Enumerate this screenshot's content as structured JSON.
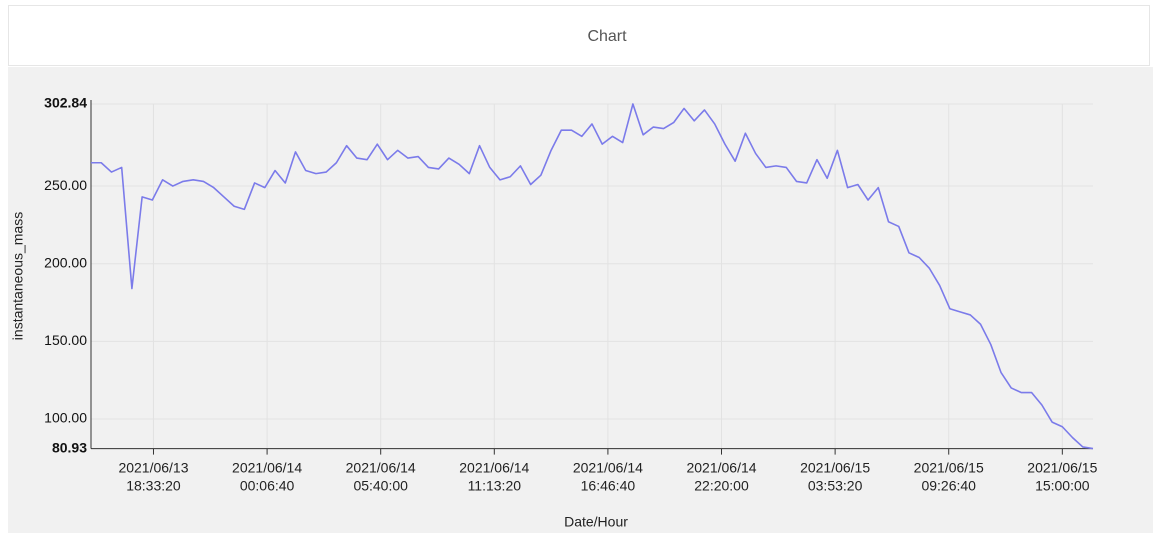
{
  "chart_data": {
    "type": "line",
    "title": "Chart",
    "xlabel": "Date/Hour",
    "ylabel": "instantaneous_mass",
    "color": "#7b7bea",
    "grid": true,
    "xlim": [
      "2021/06/13 15:30",
      "2021/06/15 16:30"
    ],
    "xticks": [
      {
        "value": "2021/06/13 18:33:20",
        "label": [
          "2021/06/13",
          "18:33:20"
        ]
      },
      {
        "value": "2021/06/14 00:06:40",
        "label": [
          "2021/06/14",
          "00:06:40"
        ]
      },
      {
        "value": "2021/06/14 05:40:00",
        "label": [
          "2021/06/14",
          "05:40:00"
        ]
      },
      {
        "value": "2021/06/14 11:13:20",
        "label": [
          "2021/06/14",
          "11:13:20"
        ]
      },
      {
        "value": "2021/06/14 16:46:40",
        "label": [
          "2021/06/14",
          "16:46:40"
        ]
      },
      {
        "value": "2021/06/14 22:20:00",
        "label": [
          "2021/06/14",
          "22:20:00"
        ]
      },
      {
        "value": "2021/06/15 03:53:20",
        "label": [
          "2021/06/15",
          "03:53:20"
        ]
      },
      {
        "value": "2021/06/15 09:26:40",
        "label": [
          "2021/06/15",
          "09:26:40"
        ]
      },
      {
        "value": "2021/06/15 15:00:00",
        "label": [
          "2021/06/15",
          "15:00:00"
        ]
      }
    ],
    "ylim": [
      80.93,
      302.84
    ],
    "yticks": [
      80.93,
      {
        "value": 100,
        "label": "100.00"
      },
      {
        "value": 150,
        "label": "150.00"
      },
      {
        "value": 200,
        "label": "200.00"
      },
      {
        "value": 250,
        "label": "250.00"
      },
      302.84
    ],
    "x": [
      "2021/06/13 15:30",
      "2021/06/13 16:00",
      "2021/06/13 16:30",
      "2021/06/13 17:00",
      "2021/06/13 17:30",
      "2021/06/13 18:00",
      "2021/06/13 18:30",
      "2021/06/13 19:00",
      "2021/06/13 19:30",
      "2021/06/13 20:00",
      "2021/06/13 20:30",
      "2021/06/13 21:00",
      "2021/06/13 21:30",
      "2021/06/13 22:00",
      "2021/06/13 22:30",
      "2021/06/13 23:00",
      "2021/06/13 23:30",
      "2021/06/14 00:00",
      "2021/06/14 00:30",
      "2021/06/14 01:00",
      "2021/06/14 01:30",
      "2021/06/14 02:00",
      "2021/06/14 02:30",
      "2021/06/14 03:00",
      "2021/06/14 03:30",
      "2021/06/14 04:00",
      "2021/06/14 04:30",
      "2021/06/14 05:00",
      "2021/06/14 05:30",
      "2021/06/14 06:00",
      "2021/06/14 06:30",
      "2021/06/14 07:00",
      "2021/06/14 07:30",
      "2021/06/14 08:00",
      "2021/06/14 08:30",
      "2021/06/14 09:00",
      "2021/06/14 09:30",
      "2021/06/14 10:00",
      "2021/06/14 10:30",
      "2021/06/14 11:00",
      "2021/06/14 11:30",
      "2021/06/14 12:00",
      "2021/06/14 12:30",
      "2021/06/14 13:00",
      "2021/06/14 13:30",
      "2021/06/14 14:00",
      "2021/06/14 14:30",
      "2021/06/14 15:00",
      "2021/06/14 15:30",
      "2021/06/14 16:00",
      "2021/06/14 16:30",
      "2021/06/14 17:00",
      "2021/06/14 17:30",
      "2021/06/14 18:00",
      "2021/06/14 18:30",
      "2021/06/14 19:00",
      "2021/06/14 19:30",
      "2021/06/14 20:00",
      "2021/06/14 20:30",
      "2021/06/14 21:00",
      "2021/06/14 21:30",
      "2021/06/14 22:00",
      "2021/06/14 22:30",
      "2021/06/14 23:00",
      "2021/06/14 23:30",
      "2021/06/15 00:00",
      "2021/06/15 00:30",
      "2021/06/15 01:00",
      "2021/06/15 01:30",
      "2021/06/15 02:00",
      "2021/06/15 02:30",
      "2021/06/15 03:00",
      "2021/06/15 03:30",
      "2021/06/15 04:00",
      "2021/06/15 04:30",
      "2021/06/15 05:00",
      "2021/06/15 05:30",
      "2021/06/15 06:00",
      "2021/06/15 06:30",
      "2021/06/15 07:00",
      "2021/06/15 07:30",
      "2021/06/15 08:00",
      "2021/06/15 08:30",
      "2021/06/15 09:00",
      "2021/06/15 09:30",
      "2021/06/15 10:00",
      "2021/06/15 10:30",
      "2021/06/15 11:00",
      "2021/06/15 11:30",
      "2021/06/15 12:00",
      "2021/06/15 12:30",
      "2021/06/15 13:00",
      "2021/06/15 13:30",
      "2021/06/15 14:00",
      "2021/06/15 14:30",
      "2021/06/15 15:00",
      "2021/06/15 15:30",
      "2021/06/15 16:00",
      "2021/06/15 16:30"
    ],
    "values": [
      265,
      265,
      259,
      262,
      184,
      243,
      241,
      254,
      250,
      253,
      254,
      253,
      249,
      243,
      237,
      235,
      252,
      249,
      260,
      252,
      272,
      260,
      258,
      259,
      265,
      276,
      268,
      267,
      277,
      267,
      273,
      268,
      269,
      262,
      261,
      268,
      264,
      258,
      276,
      262,
      254,
      256,
      263,
      251,
      257,
      273,
      286,
      286,
      282,
      290,
      277,
      282,
      278,
      302.84,
      283,
      288,
      287,
      291,
      300,
      292,
      299,
      290,
      277,
      266,
      284,
      271,
      262,
      263,
      262,
      253,
      252,
      267,
      255,
      273,
      249,
      251,
      241,
      249,
      227,
      224,
      207,
      204,
      197,
      186,
      171,
      169,
      167,
      161,
      148,
      130,
      120,
      117,
      117,
      109,
      98,
      95,
      88,
      82,
      80.93
    ]
  }
}
